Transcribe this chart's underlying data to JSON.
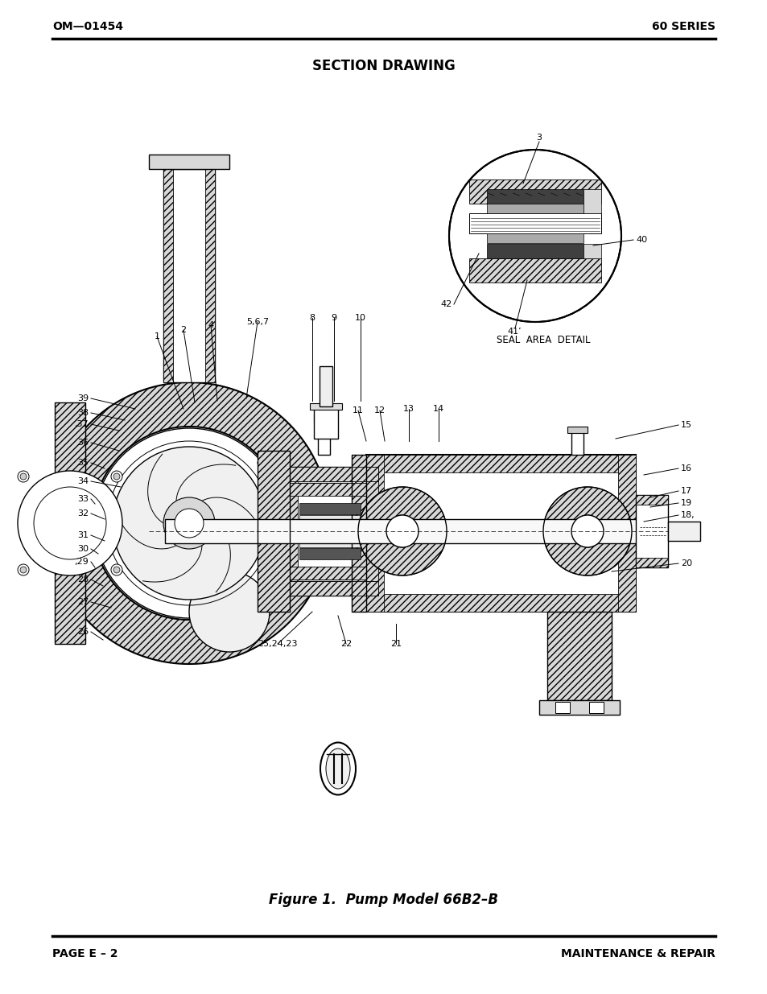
{
  "page_title": "SECTION DRAWING",
  "header_left": "OM—01454",
  "header_right": "60 SERIES",
  "footer_left": "PAGE E – 2",
  "footer_right": "MAINTENANCE & REPAIR",
  "figure_caption": "Figure 1.  Pump Model 66B2–B",
  "bg_color": "#ffffff",
  "line_color": "#000000",
  "header_font_size": 11,
  "title_font_size": 13,
  "caption_font_size": 13,
  "footer_font_size": 11,
  "fig_width": 9.54,
  "fig_height": 12.35,
  "dpi": 100,
  "seal_detail_label": "SEAL  AREA  DETAIL"
}
